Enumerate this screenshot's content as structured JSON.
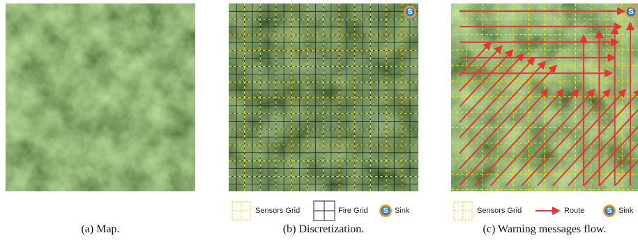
{
  "panels": [
    {
      "caption": "(a) Map."
    },
    {
      "caption": "(b) Discretization.",
      "legend": [
        {
          "label": "Sensors Grid"
        },
        {
          "label": "Fire Grid"
        },
        {
          "label": "Sink"
        }
      ]
    },
    {
      "caption": "(c) Warning messages flow.",
      "legend": [
        {
          "label": "Sensors Grid"
        },
        {
          "label": "Route"
        },
        {
          "label": "Sink"
        }
      ]
    }
  ],
  "sink_symbol": "S"
}
